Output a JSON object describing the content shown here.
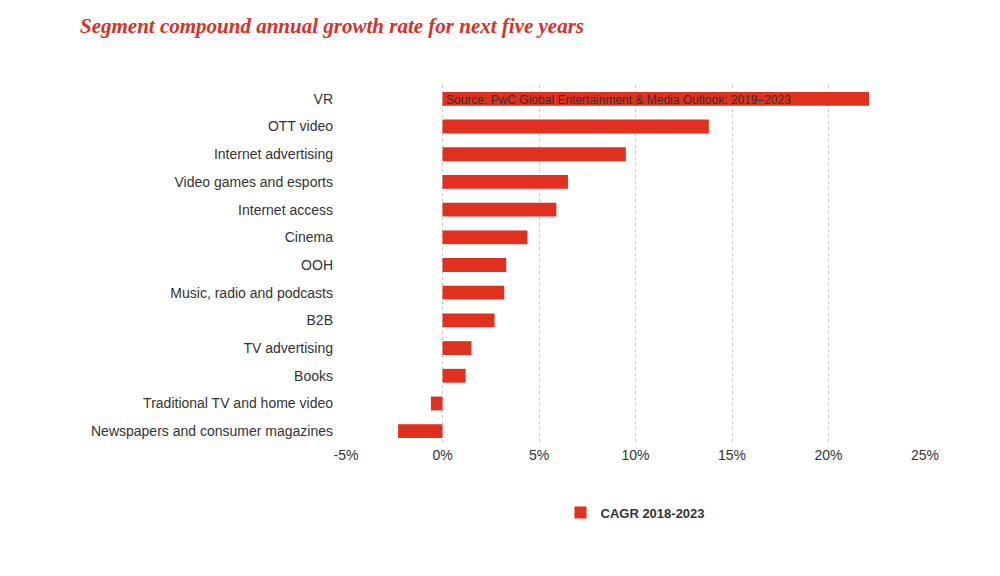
{
  "chart_data": {
    "type": "bar",
    "orientation": "horizontal",
    "title": "Segment compound annual growth rate for next five years",
    "categories": [
      "VR",
      "OTT video",
      "Internet advertising",
      "Video games and esports",
      "Internet access",
      "Cinema",
      "OOH",
      "Music, radio and podcasts",
      "B2B",
      "TV advertising",
      "Books",
      "Traditional TV and home video",
      "Newspapers and consumer magazines"
    ],
    "series": [
      {
        "name": "CAGR 2018-2023",
        "color": "#e0301e",
        "values": [
          22.1,
          13.8,
          9.5,
          6.5,
          5.9,
          4.4,
          3.3,
          3.2,
          2.7,
          1.5,
          1.2,
          -0.6,
          -2.3
        ]
      }
    ],
    "xlim": [
      -5,
      25
    ],
    "xticks": [
      {
        "value": -5,
        "label": "-5%"
      },
      {
        "value": 0,
        "label": "0%"
      },
      {
        "value": 5,
        "label": "5%"
      },
      {
        "value": 10,
        "label": "10%"
      },
      {
        "value": 15,
        "label": "15%"
      },
      {
        "value": 20,
        "label": "20%"
      },
      {
        "value": 25,
        "label": "25%"
      }
    ],
    "grid": true,
    "legend": "bottom",
    "annotations": [
      "Source: PwC Global Entertainment & Media Outlook: 2019–2023"
    ]
  }
}
